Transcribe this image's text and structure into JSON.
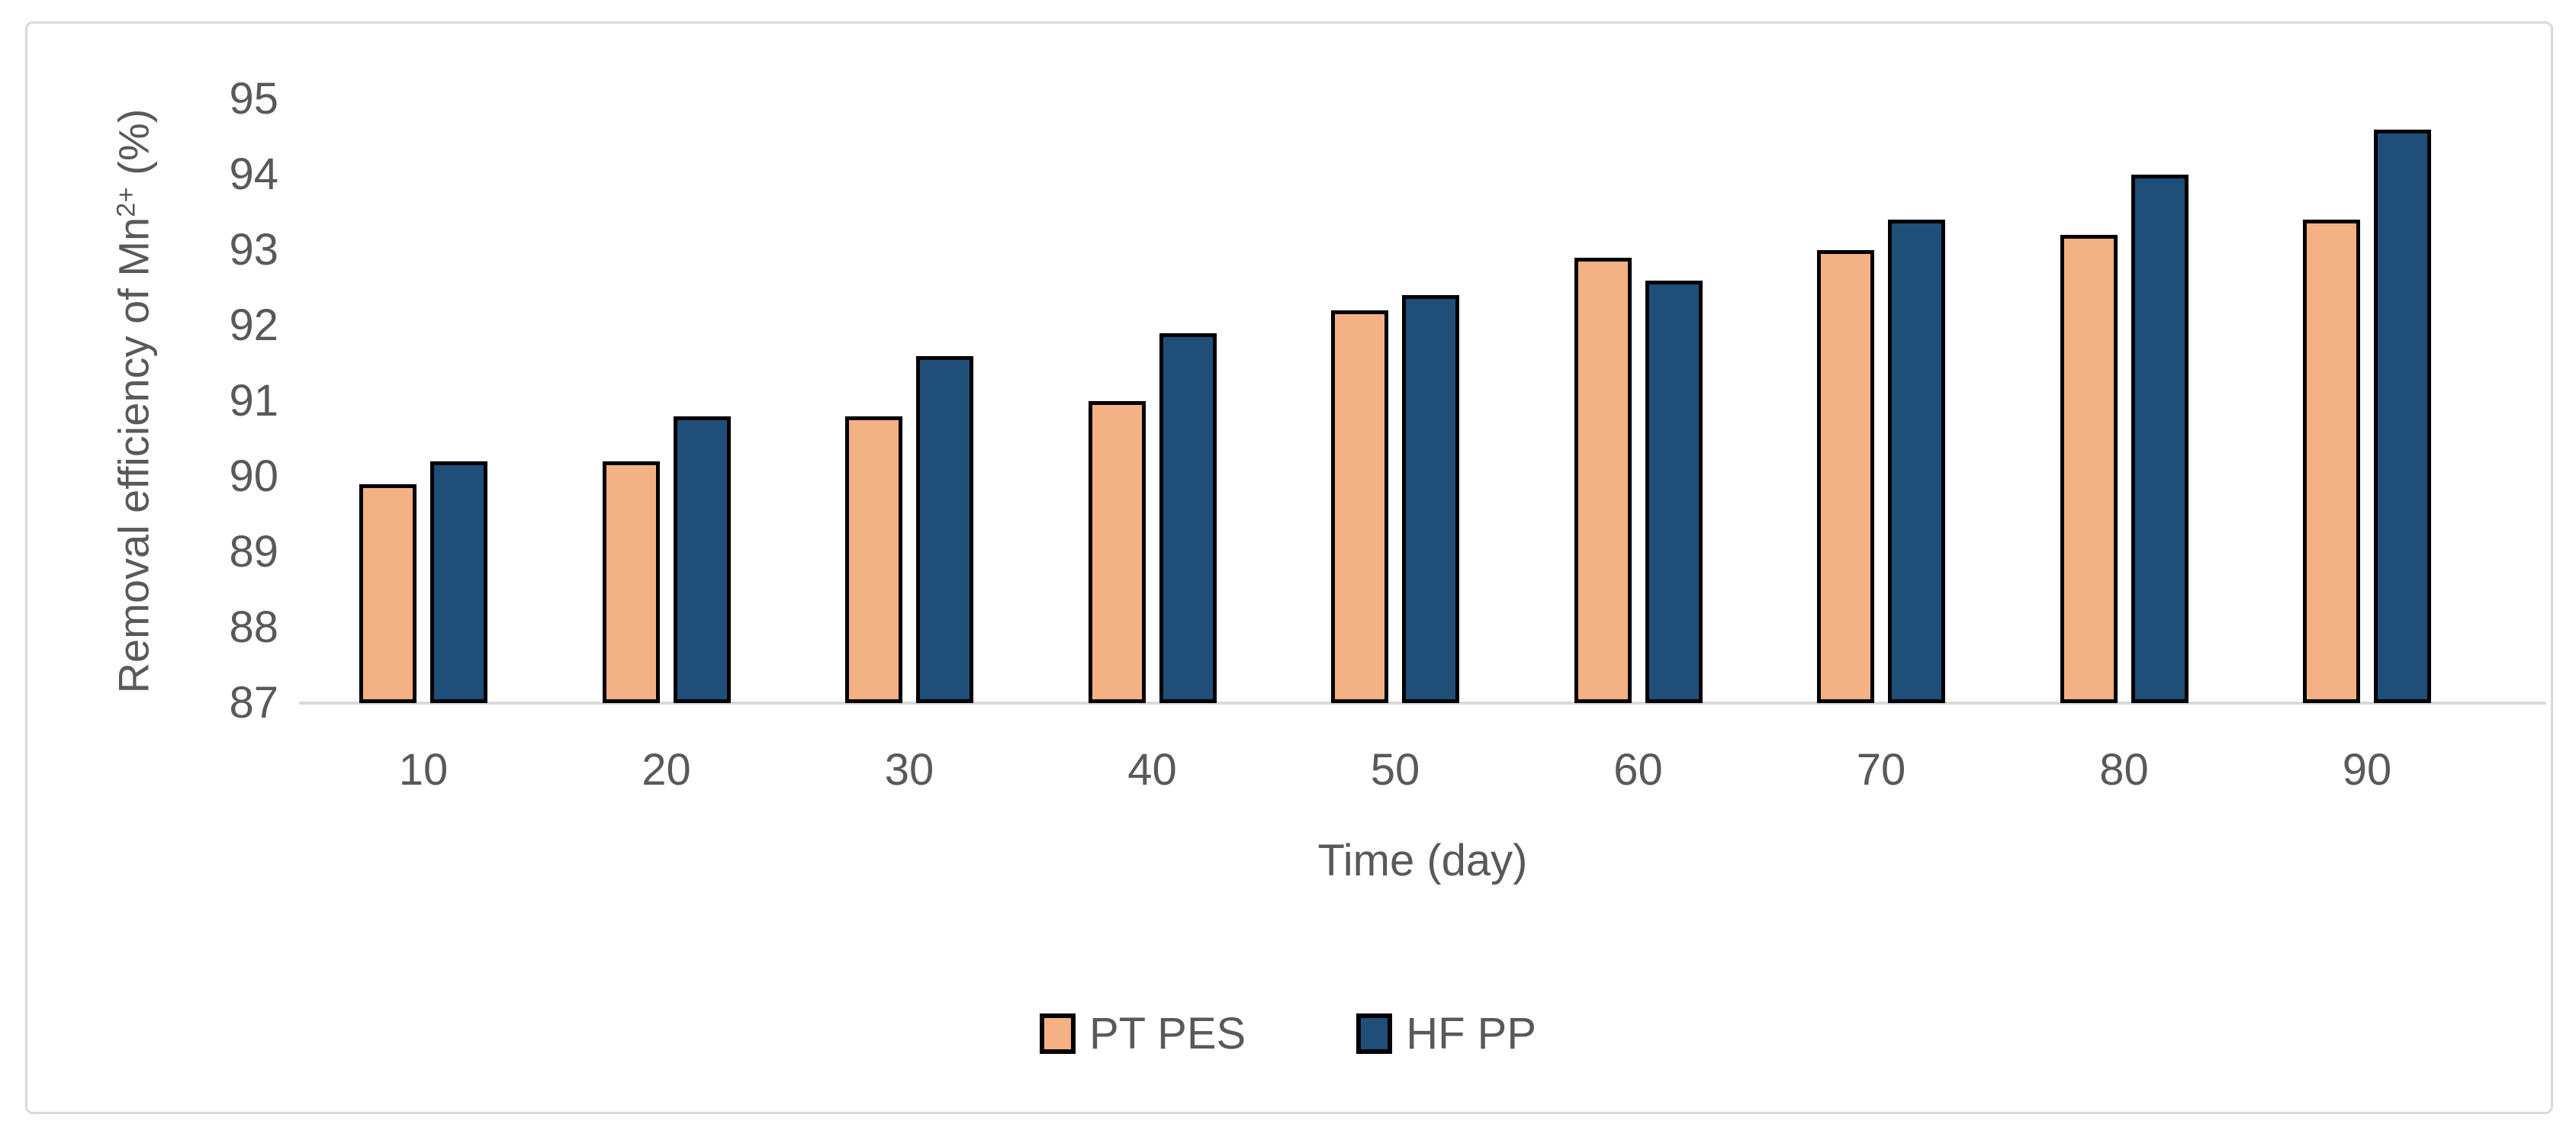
{
  "figure": {
    "background": "#FFFFFF",
    "frame_border_color": "#D9D9D9",
    "axis_line_color": "#D9D9D9",
    "text_color": "#595959",
    "bar_outline_color": "#000000"
  },
  "chart_data": {
    "type": "bar",
    "title": "",
    "categories": [
      "10",
      "20",
      "30",
      "40",
      "50",
      "60",
      "70",
      "80",
      "90"
    ],
    "series": [
      {
        "name": "PT PES",
        "color": "#F4B183",
        "values": [
          89.9,
          90.2,
          90.8,
          91.0,
          92.2,
          92.9,
          93.0,
          93.2,
          93.4
        ]
      },
      {
        "name": "HF PP",
        "color": "#1F4E79",
        "values": [
          90.2,
          90.8,
          91.6,
          91.9,
          92.4,
          92.6,
          93.4,
          94.0,
          94.6
        ]
      }
    ],
    "xlabel": "Time (day)",
    "ylabel": {
      "prefix": "Removal efficiency of Mn",
      "superscript": "2+",
      "suffix": " (%)"
    },
    "ylim": [
      87,
      95
    ],
    "yticks": [
      95,
      94,
      93,
      92,
      91,
      90,
      89,
      88,
      87
    ],
    "grid": false,
    "legend_position": "bottom"
  }
}
